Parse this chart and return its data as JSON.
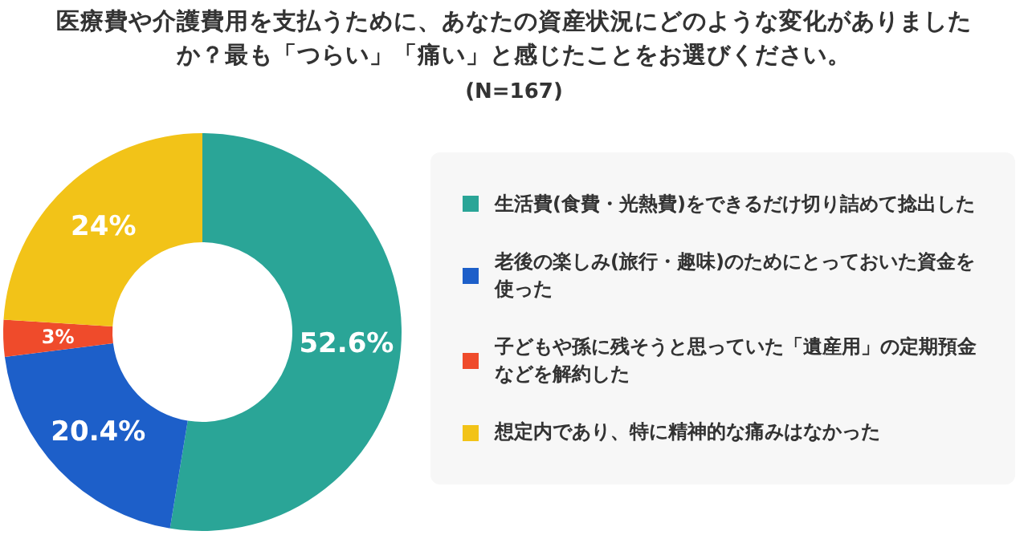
{
  "chart_data": {
    "type": "donut",
    "title": "医療費や介護費用を支払うために、あなたの資産状況にどのような変化がありましたか？最も「つらい」「痛い」と感じたことをお選びください。",
    "subtitle": "(N=167)",
    "categories": [
      "生活費(食費・光熱費)をできるだけ切り詰めて捻出した",
      "老後の楽しみ(旅行・趣味)のためにとっておいた資金を使った",
      "子どもや孫に残そうと思っていた「遺産用」の定期預金などを解約した",
      "想定内であり、特に精神的な痛みはなかった"
    ],
    "values": [
      52.6,
      20.4,
      3,
      24
    ],
    "value_labels": [
      "52.6%",
      "20.4%",
      "3%",
      "24%"
    ],
    "colors": [
      "#2aa597",
      "#1d5fc9",
      "#ef4b2b",
      "#f2c318"
    ],
    "legend": "right"
  }
}
